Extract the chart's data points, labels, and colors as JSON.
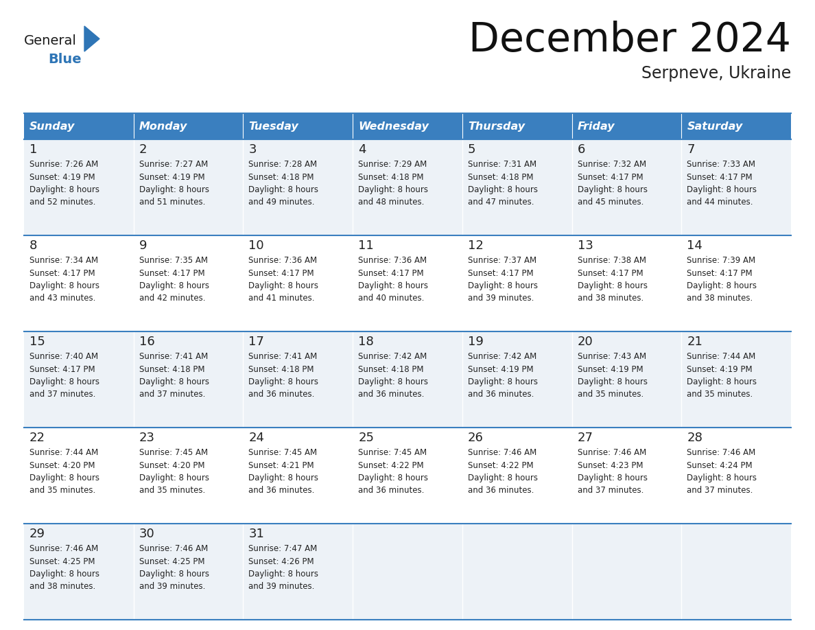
{
  "title": "December 2024",
  "subtitle": "Serpneve, Ukraine",
  "days_of_week": [
    "Sunday",
    "Monday",
    "Tuesday",
    "Wednesday",
    "Thursday",
    "Friday",
    "Saturday"
  ],
  "header_bg": "#3a7fbf",
  "header_text": "#ffffff",
  "cell_bg_odd": "#edf2f7",
  "cell_bg_even": "#ffffff",
  "day_num_color": "#222222",
  "text_color": "#222222",
  "line_color": "#3a7fbf",
  "logo_general_color": "#1a1a1a",
  "logo_blue_color": "#2e75b6",
  "calendar_data": [
    [
      {
        "day": "1",
        "sunrise": "7:26 AM",
        "sunset": "4:19 PM",
        "daylight": "8 hours",
        "daylight2": "and 52 minutes."
      },
      {
        "day": "2",
        "sunrise": "7:27 AM",
        "sunset": "4:19 PM",
        "daylight": "8 hours",
        "daylight2": "and 51 minutes."
      },
      {
        "day": "3",
        "sunrise": "7:28 AM",
        "sunset": "4:18 PM",
        "daylight": "8 hours",
        "daylight2": "and 49 minutes."
      },
      {
        "day": "4",
        "sunrise": "7:29 AM",
        "sunset": "4:18 PM",
        "daylight": "8 hours",
        "daylight2": "and 48 minutes."
      },
      {
        "day": "5",
        "sunrise": "7:31 AM",
        "sunset": "4:18 PM",
        "daylight": "8 hours",
        "daylight2": "and 47 minutes."
      },
      {
        "day": "6",
        "sunrise": "7:32 AM",
        "sunset": "4:17 PM",
        "daylight": "8 hours",
        "daylight2": "and 45 minutes."
      },
      {
        "day": "7",
        "sunrise": "7:33 AM",
        "sunset": "4:17 PM",
        "daylight": "8 hours",
        "daylight2": "and 44 minutes."
      }
    ],
    [
      {
        "day": "8",
        "sunrise": "7:34 AM",
        "sunset": "4:17 PM",
        "daylight": "8 hours",
        "daylight2": "and 43 minutes."
      },
      {
        "day": "9",
        "sunrise": "7:35 AM",
        "sunset": "4:17 PM",
        "daylight": "8 hours",
        "daylight2": "and 42 minutes."
      },
      {
        "day": "10",
        "sunrise": "7:36 AM",
        "sunset": "4:17 PM",
        "daylight": "8 hours",
        "daylight2": "and 41 minutes."
      },
      {
        "day": "11",
        "sunrise": "7:36 AM",
        "sunset": "4:17 PM",
        "daylight": "8 hours",
        "daylight2": "and 40 minutes."
      },
      {
        "day": "12",
        "sunrise": "7:37 AM",
        "sunset": "4:17 PM",
        "daylight": "8 hours",
        "daylight2": "and 39 minutes."
      },
      {
        "day": "13",
        "sunrise": "7:38 AM",
        "sunset": "4:17 PM",
        "daylight": "8 hours",
        "daylight2": "and 38 minutes."
      },
      {
        "day": "14",
        "sunrise": "7:39 AM",
        "sunset": "4:17 PM",
        "daylight": "8 hours",
        "daylight2": "and 38 minutes."
      }
    ],
    [
      {
        "day": "15",
        "sunrise": "7:40 AM",
        "sunset": "4:17 PM",
        "daylight": "8 hours",
        "daylight2": "and 37 minutes."
      },
      {
        "day": "16",
        "sunrise": "7:41 AM",
        "sunset": "4:18 PM",
        "daylight": "8 hours",
        "daylight2": "and 37 minutes."
      },
      {
        "day": "17",
        "sunrise": "7:41 AM",
        "sunset": "4:18 PM",
        "daylight": "8 hours",
        "daylight2": "and 36 minutes."
      },
      {
        "day": "18",
        "sunrise": "7:42 AM",
        "sunset": "4:18 PM",
        "daylight": "8 hours",
        "daylight2": "and 36 minutes."
      },
      {
        "day": "19",
        "sunrise": "7:42 AM",
        "sunset": "4:19 PM",
        "daylight": "8 hours",
        "daylight2": "and 36 minutes."
      },
      {
        "day": "20",
        "sunrise": "7:43 AM",
        "sunset": "4:19 PM",
        "daylight": "8 hours",
        "daylight2": "and 35 minutes."
      },
      {
        "day": "21",
        "sunrise": "7:44 AM",
        "sunset": "4:19 PM",
        "daylight": "8 hours",
        "daylight2": "and 35 minutes."
      }
    ],
    [
      {
        "day": "22",
        "sunrise": "7:44 AM",
        "sunset": "4:20 PM",
        "daylight": "8 hours",
        "daylight2": "and 35 minutes."
      },
      {
        "day": "23",
        "sunrise": "7:45 AM",
        "sunset": "4:20 PM",
        "daylight": "8 hours",
        "daylight2": "and 35 minutes."
      },
      {
        "day": "24",
        "sunrise": "7:45 AM",
        "sunset": "4:21 PM",
        "daylight": "8 hours",
        "daylight2": "and 36 minutes."
      },
      {
        "day": "25",
        "sunrise": "7:45 AM",
        "sunset": "4:22 PM",
        "daylight": "8 hours",
        "daylight2": "and 36 minutes."
      },
      {
        "day": "26",
        "sunrise": "7:46 AM",
        "sunset": "4:22 PM",
        "daylight": "8 hours",
        "daylight2": "and 36 minutes."
      },
      {
        "day": "27",
        "sunrise": "7:46 AM",
        "sunset": "4:23 PM",
        "daylight": "8 hours",
        "daylight2": "and 37 minutes."
      },
      {
        "day": "28",
        "sunrise": "7:46 AM",
        "sunset": "4:24 PM",
        "daylight": "8 hours",
        "daylight2": "and 37 minutes."
      }
    ],
    [
      {
        "day": "29",
        "sunrise": "7:46 AM",
        "sunset": "4:25 PM",
        "daylight": "8 hours",
        "daylight2": "and 38 minutes."
      },
      {
        "day": "30",
        "sunrise": "7:46 AM",
        "sunset": "4:25 PM",
        "daylight": "8 hours",
        "daylight2": "and 39 minutes."
      },
      {
        "day": "31",
        "sunrise": "7:47 AM",
        "sunset": "4:26 PM",
        "daylight": "8 hours",
        "daylight2": "and 39 minutes."
      },
      null,
      null,
      null,
      null
    ]
  ]
}
